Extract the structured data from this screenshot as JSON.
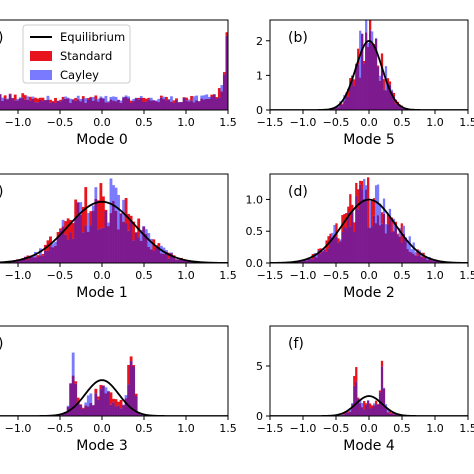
{
  "colors": {
    "equilibrium": "#000000",
    "standard": "#e8141d",
    "cayley": "#7a7aff",
    "overlap": "#7d1a8f"
  },
  "legend": [
    {
      "label": "Equilibrium",
      "kind": "line",
      "color_key": "equilibrium"
    },
    {
      "label": "Standard",
      "kind": "patch",
      "color_key": "standard"
    },
    {
      "label": "Cayley",
      "kind": "patch",
      "color_key": "cayley"
    }
  ],
  "chart_data": [
    {
      "type": "histogram",
      "panel_label": ")",
      "xlabel": "Mode 0",
      "xlim": [
        -1.5,
        1.5
      ],
      "xticks": [
        "−1.0",
        "−0.5",
        "0.0",
        "0.5",
        "1.0",
        "1.5"
      ],
      "xtick_values": [
        -1.0,
        -0.5,
        0.0,
        0.5,
        1.0,
        1.5
      ],
      "ylim": [
        0,
        1.0
      ],
      "yticks": [],
      "distribution": "mode0",
      "equilibrium": "none",
      "legend": true
    },
    {
      "type": "histogram",
      "panel_label": "(b)",
      "xlabel": "Mode 5",
      "xlim": [
        -1.5,
        1.5
      ],
      "xticks": [
        "−1.5",
        "−1.0",
        "−0.5",
        "0.0",
        "0.5",
        "1.0",
        "1.5"
      ],
      "xtick_values": [
        -1.5,
        -1.0,
        -0.5,
        0.0,
        0.5,
        1.0,
        1.5
      ],
      "ylim": [
        0,
        2.6
      ],
      "yticks": [
        "0",
        "1",
        "2"
      ],
      "ytick_values": [
        0,
        1,
        2
      ],
      "distribution": "gauss",
      "sigma": 0.2,
      "equilibrium": "gauss"
    },
    {
      "type": "histogram",
      "panel_label": ")",
      "xlabel": "Mode 1",
      "xlim": [
        -1.5,
        1.5
      ],
      "xticks": [
        "−1.0",
        "−0.5",
        "0.0",
        "0.5",
        "1.0",
        "1.5"
      ],
      "xtick_values": [
        -1.0,
        -0.5,
        0.0,
        0.5,
        1.0,
        1.5
      ],
      "ylim": [
        0,
        1.45
      ],
      "yticks": [],
      "distribution": "gauss",
      "sigma": 0.4,
      "equilibrium": "gauss"
    },
    {
      "type": "histogram",
      "panel_label": "(d)",
      "xlabel": "Mode 2",
      "xlim": [
        -1.5,
        1.5
      ],
      "xticks": [
        "−1.5",
        "−1.0",
        "−0.5",
        "0.0",
        "0.5",
        "1.0",
        "1.5"
      ],
      "xtick_values": [
        -1.5,
        -1.0,
        -0.5,
        0.0,
        0.5,
        1.0,
        1.5
      ],
      "ylim": [
        0,
        1.4
      ],
      "yticks": [
        "0.0",
        "0.5",
        "1.0"
      ],
      "ytick_values": [
        0,
        0.5,
        1.0
      ],
      "distribution": "gauss",
      "sigma": 0.4,
      "equilibrium": "gauss"
    },
    {
      "type": "histogram",
      "panel_label": ")",
      "xlabel": "Mode 3",
      "xlim": [
        -1.5,
        1.5
      ],
      "xticks": [
        "−1.0",
        "−0.5",
        "0.0",
        "0.5",
        "1.0",
        "1.5"
      ],
      "xtick_values": [
        -1.0,
        -0.5,
        0.0,
        0.5,
        1.0,
        1.5
      ],
      "ylim": [
        0,
        5.0
      ],
      "yticks": [],
      "distribution": "bimodal",
      "sigma": 0.2,
      "peaks": [
        -0.35,
        0.35
      ],
      "equilibrium": "gauss"
    },
    {
      "type": "histogram",
      "panel_label": "(f)",
      "xlabel": "Mode 4",
      "xlim": [
        -1.5,
        1.5
      ],
      "xticks": [
        "−1.5",
        "−1.0",
        "−0.5",
        "0.0",
        "0.5",
        "1.0",
        "1.5"
      ],
      "xtick_values": [
        -1.5,
        -1.0,
        -0.5,
        0.0,
        0.5,
        1.0,
        1.5
      ],
      "ylim": [
        0,
        9
      ],
      "yticks": [
        "0",
        "5"
      ],
      "ytick_values": [
        0,
        5
      ],
      "distribution": "bimodal",
      "sigma": 0.2,
      "peaks": [
        -0.2,
        0.2
      ],
      "equilibrium": "gauss"
    }
  ]
}
